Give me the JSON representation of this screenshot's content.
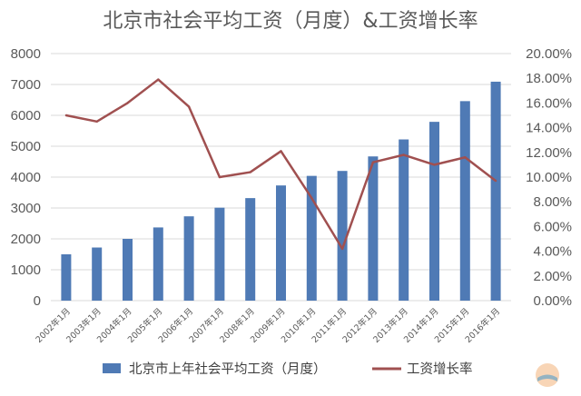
{
  "chart_data": {
    "type": "bar+line",
    "title": "北京市社会平均工资（月度）&工资增长率",
    "categories": [
      "2002年1月",
      "2003年1月",
      "2004年1月",
      "2005年1月",
      "2006年1月",
      "2007年1月",
      "2008年1月",
      "2009年1月",
      "2010年1月",
      "2011年1月",
      "2012年1月",
      "2013年1月",
      "2014年1月",
      "2015年1月",
      "2016年1月"
    ],
    "series": [
      {
        "name": "北京市上年社会平均工资（月度）",
        "type": "bar",
        "axis": "left",
        "color": "#4f7ab5",
        "values": [
          1500,
          1720,
          2000,
          2370,
          2730,
          3010,
          3320,
          3730,
          4040,
          4200,
          4670,
          5220,
          5790,
          6460,
          7090
        ]
      },
      {
        "name": "工资增长率",
        "type": "line",
        "axis": "right",
        "color": "#a05050",
        "values": [
          0.15,
          0.145,
          0.16,
          0.179,
          0.157,
          0.1,
          0.104,
          0.121,
          0.083,
          0.042,
          0.112,
          0.118,
          0.11,
          0.116,
          0.097
        ]
      }
    ],
    "y_left": {
      "min": 0,
      "max": 8000,
      "ticks": [
        "0",
        "1000",
        "2000",
        "3000",
        "4000",
        "5000",
        "6000",
        "7000",
        "8000"
      ]
    },
    "y_right": {
      "min": 0,
      "max": 0.2,
      "ticks": [
        "0.00%",
        "2.00%",
        "4.00%",
        "6.00%",
        "8.00%",
        "10.00%",
        "12.00%",
        "14.00%",
        "16.00%",
        "18.00%",
        "20.00%"
      ]
    },
    "grid": true,
    "legend_position": "bottom"
  }
}
